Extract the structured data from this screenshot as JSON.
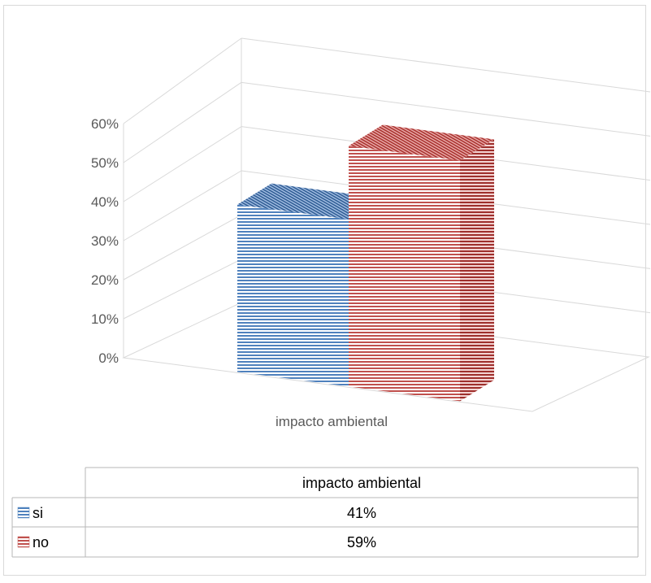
{
  "chart_data": {
    "type": "bar",
    "categories": [
      "impacto ambiental"
    ],
    "series": [
      {
        "name": "si",
        "values": [
          0.41
        ],
        "color": "#4f81bd"
      },
      {
        "name": "no",
        "values": [
          0.59
        ],
        "color": "#c0504d"
      }
    ],
    "ylim": [
      0,
      0.6
    ],
    "yticks": [
      "0%",
      "10%",
      "20%",
      "30%",
      "40%",
      "50%",
      "60%"
    ],
    "grid": true,
    "three_d": true,
    "data_table": {
      "header": "impacto ambiental",
      "rows": [
        {
          "label": "si",
          "value": "41%"
        },
        {
          "label": "no",
          "value": "59%"
        }
      ]
    }
  }
}
